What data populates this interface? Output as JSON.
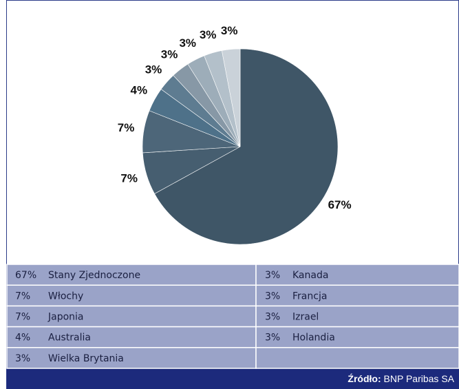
{
  "chart_data": {
    "type": "pie",
    "categories": [
      "Stany Zjednoczone",
      "Włochy",
      "Japonia",
      "Australia",
      "Wielka Brytania",
      "Kanada",
      "Francja",
      "Izrael",
      "Holandia"
    ],
    "values": [
      67,
      7,
      7,
      4,
      3,
      3,
      3,
      3,
      3
    ],
    "value_labels": [
      "67%",
      "7%",
      "7%",
      "4%",
      "3%",
      "3%",
      "3%",
      "3%",
      "3%"
    ],
    "colors": [
      "#3f5667",
      "#465e70",
      "#4d6679",
      "#4e7189",
      "#5e7c91",
      "#8798a6",
      "#9dadb9",
      "#b3c0ca",
      "#cad2d9"
    ],
    "source_label": "Źródło:",
    "source": "BNP Paribas SA"
  }
}
